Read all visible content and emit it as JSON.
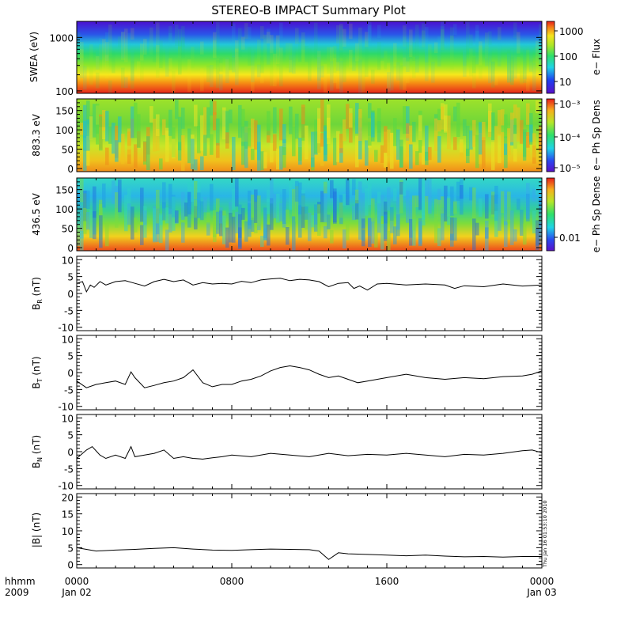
{
  "title": "STEREO-B IMPACT Summary Plot",
  "stamp": "Thu Jan 16 01:53:10 2010",
  "x_axis": {
    "ticks": [
      "0000",
      "0800",
      "1600",
      "0000"
    ],
    "dates": [
      "Jan 02",
      "",
      "",
      "Jan 03"
    ],
    "row_label_1": "hhmm",
    "row_label_2": "2009",
    "start_hour": 0,
    "end_hour": 24
  },
  "colorbars": {
    "swea": {
      "label": "e− Flux",
      "ticks": [
        "1000",
        "100",
        "10"
      ]
    },
    "pad1": {
      "label": "e− Ph Sp Dens",
      "ticks": [
        "10⁻³",
        "10⁻⁴",
        "10⁻⁵"
      ]
    },
    "pad2": {
      "label": "e− Ph Sp Dense",
      "ticks": [
        "0.01"
      ]
    }
  },
  "chart_data": [
    {
      "type": "heatmap",
      "id": "swea",
      "ylabel": "SWEA (eV)",
      "ylim": [
        90,
        2000
      ],
      "yscale": "log",
      "yticks": [
        "1000",
        "100"
      ],
      "description_bands": [
        {
          "energy_eV": 1500,
          "log_flux": 0.8
        },
        {
          "energy_eV": 1000,
          "log_flux": 1.3
        },
        {
          "energy_eV": 600,
          "log_flux": 2.0
        },
        {
          "energy_eV": 400,
          "log_flux": 2.5
        },
        {
          "energy_eV": 250,
          "log_flux": 2.9
        },
        {
          "energy_eV": 150,
          "log_flux": 3.3
        },
        {
          "energy_eV": 100,
          "log_flux": 3.1
        }
      ]
    },
    {
      "type": "heatmap",
      "id": "pad1",
      "ylabel": "883.3 eV",
      "ylim": [
        0,
        180
      ],
      "yticks": [
        "0",
        "50",
        "100",
        "150"
      ]
    },
    {
      "type": "heatmap",
      "id": "pad2",
      "ylabel": "436.5 eV",
      "ylim": [
        0,
        180
      ],
      "yticks": [
        "0",
        "50",
        "100",
        "150"
      ]
    },
    {
      "type": "line",
      "id": "br",
      "ylabel": "B_R (nT)",
      "ylim": [
        -11,
        11
      ],
      "yticks": [
        "-10",
        "-5",
        "0",
        "5",
        "10"
      ],
      "x": [
        0,
        0.3,
        0.5,
        0.7,
        0.9,
        1.2,
        1.5,
        2.0,
        2.5,
        3.0,
        3.5,
        4.0,
        4.5,
        5.0,
        5.5,
        6.0,
        6.5,
        7.0,
        7.5,
        8.0,
        8.5,
        9.0,
        9.5,
        10.0,
        10.5,
        11.0,
        11.5,
        12.0,
        12.5,
        13.0,
        13.5,
        14.0,
        14.3,
        14.6,
        15.0,
        15.5,
        16.0,
        17.0,
        18.0,
        19.0,
        19.5,
        20.0,
        21.0,
        22.0,
        23.0,
        24.0
      ],
      "y": [
        3.0,
        3.5,
        0.5,
        2.5,
        1.8,
        3.5,
        2.5,
        3.5,
        3.8,
        3.0,
        2.2,
        3.5,
        4.2,
        3.5,
        4.0,
        2.5,
        3.2,
        2.8,
        3.0,
        2.8,
        3.6,
        3.2,
        4.0,
        4.3,
        4.5,
        3.8,
        4.2,
        4.0,
        3.5,
        2.0,
        3.0,
        3.2,
        1.5,
        2.2,
        1.0,
        2.8,
        3.0,
        2.5,
        2.8,
        2.5,
        1.5,
        2.3,
        2.0,
        2.8,
        2.2,
        2.5
      ]
    },
    {
      "type": "line",
      "id": "bt",
      "ylabel": "B_T (nT)",
      "ylim": [
        -11,
        11
      ],
      "yticks": [
        "-10",
        "-5",
        "0",
        "5",
        "10"
      ],
      "x": [
        0,
        0.5,
        1.0,
        1.5,
        2.0,
        2.5,
        2.8,
        3.0,
        3.5,
        4.0,
        4.5,
        5.0,
        5.5,
        6.0,
        6.5,
        7.0,
        7.5,
        8.0,
        8.5,
        9.0,
        9.5,
        10.0,
        10.5,
        11.0,
        11.5,
        12.0,
        12.5,
        13.0,
        13.5,
        14.0,
        14.5,
        15.0,
        16.0,
        17.0,
        18.0,
        19.0,
        20.0,
        21.0,
        22.0,
        23.0,
        23.5,
        24.0
      ],
      "y": [
        -2.5,
        -4.5,
        -3.5,
        -3.0,
        -2.5,
        -3.5,
        0.2,
        -1.5,
        -4.5,
        -3.8,
        -3.0,
        -2.5,
        -1.5,
        0.8,
        -3.0,
        -4.2,
        -3.5,
        -3.5,
        -2.5,
        -2.0,
        -1.0,
        0.5,
        1.5,
        2.0,
        1.5,
        0.8,
        -0.5,
        -1.5,
        -1.0,
        -2.0,
        -3.0,
        -2.5,
        -1.5,
        -0.5,
        -1.5,
        -2.0,
        -1.5,
        -1.8,
        -1.2,
        -1.0,
        -0.5,
        0.5
      ]
    },
    {
      "type": "line",
      "id": "bn",
      "ylabel": "B_N (nT)",
      "ylim": [
        -11,
        11
      ],
      "yticks": [
        "-10",
        "-5",
        "0",
        "5",
        "10"
      ],
      "x": [
        0,
        0.5,
        0.8,
        1.2,
        1.5,
        2.0,
        2.5,
        2.8,
        3.0,
        3.5,
        4.0,
        4.5,
        5.0,
        5.5,
        6.0,
        6.5,
        7.0,
        7.5,
        8.0,
        9.0,
        10.0,
        11.0,
        12.0,
        13.0,
        14.0,
        15.0,
        16.0,
        17.0,
        18.0,
        19.0,
        20.0,
        21.0,
        22.0,
        23.0,
        23.5,
        24.0
      ],
      "y": [
        -2.0,
        0.5,
        1.5,
        -1.0,
        -2.0,
        -1.0,
        -2.0,
        1.5,
        -1.5,
        -1.0,
        -0.5,
        0.5,
        -2.0,
        -1.5,
        -2.0,
        -2.2,
        -1.8,
        -1.5,
        -1.0,
        -1.5,
        -0.5,
        -1.0,
        -1.5,
        -0.5,
        -1.2,
        -0.8,
        -1.0,
        -0.5,
        -1.0,
        -1.5,
        -0.8,
        -1.0,
        -0.5,
        0.3,
        0.5,
        -0.3
      ]
    },
    {
      "type": "line",
      "id": "bmag",
      "ylabel": "|B| (nT)",
      "ylim": [
        -1,
        21
      ],
      "yticks": [
        "0",
        "5",
        "10",
        "15",
        "20"
      ],
      "x": [
        0,
        0.5,
        1.0,
        2.0,
        3.0,
        4.0,
        5.0,
        6.0,
        7.0,
        8.0,
        9.0,
        10.0,
        11.0,
        12.0,
        12.5,
        13.0,
        13.5,
        14.0,
        15.0,
        16.0,
        17.0,
        18.0,
        19.0,
        20.0,
        21.0,
        22.0,
        23.0,
        24.0
      ],
      "y": [
        5.0,
        4.5,
        4.0,
        4.3,
        4.5,
        4.8,
        5.0,
        4.6,
        4.3,
        4.2,
        4.4,
        4.6,
        4.5,
        4.4,
        4.0,
        1.5,
        3.5,
        3.2,
        3.0,
        2.8,
        2.6,
        2.8,
        2.5,
        2.3,
        2.4,
        2.2,
        2.4,
        2.4
      ]
    }
  ]
}
